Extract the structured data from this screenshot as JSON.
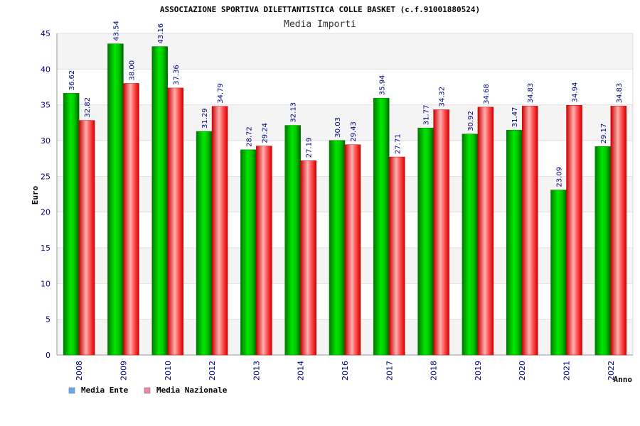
{
  "chart_data": {
    "type": "bar",
    "title": "ASSOCIAZIONE SPORTIVA DILETTANTISTICA COLLE BASKET (c.f.91001880524)",
    "subtitle": "Media Importi",
    "xlabel": "Anno",
    "ylabel": "Euro",
    "ylim": [
      0,
      45
    ],
    "yticks": [
      0,
      5,
      10,
      15,
      20,
      25,
      30,
      35,
      40,
      45
    ],
    "categories": [
      "2008",
      "2009",
      "2010",
      "2012",
      "2013",
      "2014",
      "2016",
      "2017",
      "2018",
      "2019",
      "2020",
      "2021",
      "2022"
    ],
    "series": [
      {
        "name": "Media Ente",
        "color": "#00c000",
        "values": [
          36.62,
          43.54,
          43.16,
          31.29,
          28.72,
          32.13,
          30.03,
          35.94,
          31.77,
          30.92,
          31.47,
          23.09,
          29.17
        ],
        "labels": [
          "36.62",
          "43.54",
          "43.16",
          "31.29",
          "28.72",
          "32.13",
          "30.03",
          "35.94",
          "31.77",
          "30.92",
          "31.47",
          "23.09",
          "29.17"
        ]
      },
      {
        "name": "Media Nazionale",
        "color": "#ff0000",
        "values": [
          32.82,
          38.0,
          37.36,
          34.79,
          29.24,
          27.19,
          29.43,
          27.71,
          34.32,
          34.68,
          34.83,
          34.94,
          34.83
        ],
        "labels": [
          "32.82",
          "38.00",
          "37.36",
          "34.79",
          "29.24",
          "27.19",
          "29.43",
          "27.71",
          "34.32",
          "34.68",
          "34.83",
          "34.94",
          "34.83"
        ]
      }
    ],
    "legend": [
      {
        "label": "Media Ente",
        "swatch": "#66aaee"
      },
      {
        "label": "Media Nazionale",
        "swatch": "#ee88aa"
      }
    ],
    "grid": true,
    "legend_position": "bottom-left"
  }
}
